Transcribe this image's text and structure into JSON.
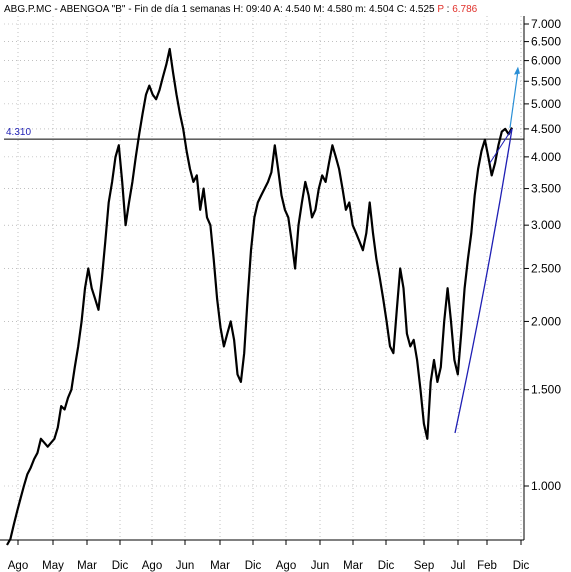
{
  "header": {
    "symbol": "ABG.P.MC",
    "name": "ABENGOA \"B\"",
    "period": "Fin de día 1 semanas",
    "h_label": "H:",
    "h_value": "09:40",
    "a_label": "A:",
    "a_value": "4.540",
    "m_label": "M:",
    "m_value": "4.580",
    "mn_label": "m:",
    "mn_value": "4.504",
    "c_label": "C:",
    "c_value": "4.525",
    "p_label": "P",
    "p_value": "6.786"
  },
  "colors": {
    "price": "#000000",
    "trendline": "#1f1fb4",
    "level_label": "#1f1fb4",
    "arrow": "#2a8fd6",
    "p_value": "#e0302a",
    "grid": "#9a9a9a"
  },
  "chart_data": {
    "type": "line",
    "scale": "log",
    "ylim": [
      0.85,
      7.3
    ],
    "yticks": [
      "7.000",
      "6.500",
      "6.000",
      "5.500",
      "5.000",
      "4.500",
      "4.000",
      "3.500",
      "3.000",
      "2.500",
      "2.000",
      "1.500",
      "1.000"
    ],
    "xticks": [
      "Ago",
      "May",
      "Mar",
      "Dic",
      "Ago",
      "Jun",
      "Mar",
      "Dic",
      "Ago",
      "Jun",
      "Mar",
      "Dic",
      "Sep",
      "Jul",
      "Feb",
      "Dic"
    ],
    "horizontal_level": {
      "value": 4.31,
      "label": "4.310"
    },
    "series": [
      {
        "values": [
          0.78,
          0.8,
          0.85,
          0.9,
          0.95,
          1.0,
          1.05,
          1.08,
          1.12,
          1.15,
          1.22,
          1.2,
          1.18,
          1.2,
          1.22,
          1.28,
          1.4,
          1.38,
          1.45,
          1.5,
          1.65,
          1.8,
          2.0,
          2.3,
          2.5,
          2.3,
          2.2,
          2.1,
          2.4,
          2.8,
          3.3,
          3.6,
          4.0,
          4.2,
          3.6,
          3.0,
          3.3,
          3.6,
          4.0,
          4.4,
          4.8,
          5.2,
          5.4,
          5.2,
          5.1,
          5.3,
          5.6,
          5.9,
          6.3,
          5.7,
          5.2,
          4.8,
          4.5,
          4.1,
          3.8,
          3.6,
          3.7,
          3.2,
          3.5,
          3.1,
          3.0,
          2.6,
          2.2,
          1.95,
          1.8,
          1.9,
          2.0,
          1.85,
          1.6,
          1.55,
          1.75,
          2.2,
          2.7,
          3.1,
          3.3,
          3.4,
          3.5,
          3.6,
          3.75,
          4.2,
          3.8,
          3.4,
          3.2,
          3.1,
          2.8,
          2.5,
          3.0,
          3.3,
          3.6,
          3.4,
          3.1,
          3.2,
          3.5,
          3.7,
          3.6,
          3.9,
          4.2,
          4.0,
          3.8,
          3.5,
          3.2,
          3.3,
          3.0,
          2.9,
          2.8,
          2.7,
          2.9,
          3.3,
          2.9,
          2.6,
          2.4,
          2.2,
          2.0,
          1.8,
          1.75,
          2.1,
          2.5,
          2.3,
          1.9,
          1.8,
          1.85,
          1.7,
          1.5,
          1.3,
          1.22,
          1.55,
          1.7,
          1.55,
          1.65,
          2.0,
          2.3,
          2.0,
          1.7,
          1.6,
          1.9,
          2.3,
          2.6,
          2.9,
          3.4,
          3.8,
          4.1,
          4.3,
          4.0,
          3.7,
          3.9,
          4.2,
          4.45,
          4.5,
          4.4,
          4.525
        ]
      }
    ],
    "trendline": {
      "from": 1.25,
      "to": 4.5
    },
    "projection_arrow": {
      "from": 4.52,
      "to": 5.85
    }
  }
}
